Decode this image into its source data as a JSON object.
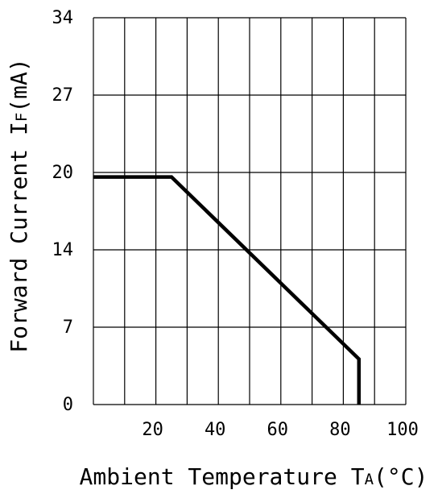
{
  "chart_data": {
    "type": "line",
    "xlabel": {
      "main": "Ambient Temperature T",
      "sub": "A",
      "unit": "(°C)"
    },
    "ylabel": {
      "main": "Forward Current I",
      "sub": "F",
      "unit": "(mA)"
    },
    "x_ticks": [
      "20",
      "40",
      "60",
      "80",
      "100"
    ],
    "y_ticks": [
      "0",
      "7",
      "14",
      "20",
      "27",
      "34"
    ],
    "grid": true,
    "series": [
      {
        "points": [
          {
            "x": 0,
            "y": 20
          },
          {
            "x": 25,
            "y": 20
          },
          {
            "x": 85,
            "y": 4
          },
          {
            "x": 85,
            "y": 0
          }
        ]
      }
    ]
  }
}
